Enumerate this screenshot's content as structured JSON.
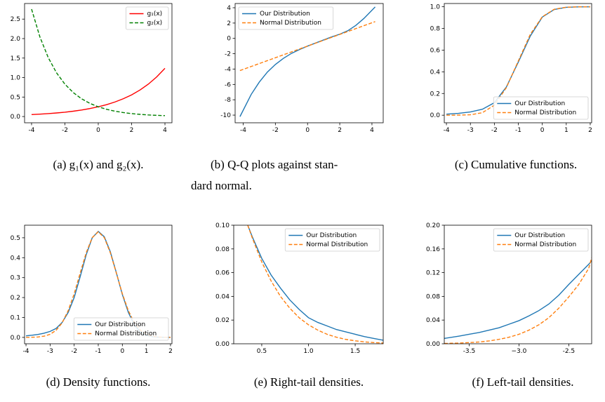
{
  "chart_data": [
    {
      "type": "line",
      "caption": "(a) g₁(x) and g₂(x).",
      "legend": "upper right",
      "x": [
        -4,
        -3.5,
        -3,
        -2.5,
        -2,
        -1.5,
        -1,
        -0.5,
        0,
        0.5,
        1,
        1.5,
        2,
        2.5,
        3,
        3.5,
        4
      ],
      "series": [
        {
          "name": "g₁(x)",
          "color": "#ff0000",
          "style": "solid",
          "values": [
            0.05,
            0.062,
            0.075,
            0.092,
            0.112,
            0.137,
            0.168,
            0.205,
            0.25,
            0.305,
            0.373,
            0.456,
            0.556,
            0.68,
            0.83,
            1.014,
            1.238
          ]
        },
        {
          "name": "g₂(x)",
          "color": "#008000",
          "style": "dashed",
          "values": [
            2.756,
            2.042,
            1.512,
            1.12,
            0.83,
            0.615,
            0.456,
            0.337,
            0.25,
            0.185,
            0.137,
            0.102,
            0.075,
            0.056,
            0.041,
            0.031,
            0.023
          ]
        }
      ],
      "xlim": [
        -4.42,
        4.42
      ],
      "ylim": [
        -0.16,
        2.9
      ],
      "xticks": [
        -4,
        -2,
        0,
        2,
        4
      ],
      "yticks": [
        {
          "value": 0,
          "label": "0.0"
        },
        0.5,
        {
          "value": 1,
          "label": "1.0"
        },
        1.5,
        {
          "value": 2,
          "label": "2.0"
        },
        2.5
      ]
    },
    {
      "type": "line",
      "caption": [
        "(b) Q-Q plots against stan-",
        "dard normal."
      ],
      "legend": "upper left",
      "x": [
        -4.2,
        -3.5,
        -3,
        -2.5,
        -2,
        -1.5,
        -1,
        -0.5,
        0,
        0.5,
        1,
        1.5,
        2,
        2.5,
        3,
        3.5,
        4.2
      ],
      "series": [
        {
          "name": "Our Distribution",
          "color": "#1f77b4",
          "style": "solid",
          "values": [
            -10.2,
            -7.3,
            -5.7,
            -4.4,
            -3.4,
            -2.6,
            -1.95,
            -1.45,
            -1.0,
            -0.6,
            -0.2,
            0.2,
            0.55,
            1.0,
            1.7,
            2.6,
            4.1
          ]
        },
        {
          "name": "Normal Distribution",
          "color": "#ff7f0e",
          "style": "dashed",
          "values": [
            -4.19,
            -3.66,
            -3.28,
            -2.9,
            -2.52,
            -2.14,
            -1.76,
            -1.38,
            -1.0,
            -0.62,
            -0.24,
            0.14,
            0.52,
            0.9,
            1.28,
            1.66,
            2.19
          ]
        }
      ],
      "xlim": [
        -4.5,
        4.7
      ],
      "ylim": [
        -11,
        4.55
      ],
      "xticks": [
        -4,
        -2,
        0,
        2,
        4
      ],
      "yticks": [
        -10,
        -8,
        -6,
        -4,
        -2,
        0,
        2,
        4
      ]
    },
    {
      "type": "line",
      "caption": "(c) Cumulative functions.",
      "legend": "lower right",
      "x": [
        -4,
        -3.5,
        -3,
        -2.5,
        -2,
        -1.5,
        -1,
        -0.5,
        0,
        0.5,
        1,
        1.5,
        2
      ],
      "series": [
        {
          "name": "Our Distribution",
          "color": "#1f77b4",
          "style": "solid",
          "values": [
            0.01,
            0.017,
            0.03,
            0.055,
            0.115,
            0.26,
            0.49,
            0.73,
            0.905,
            0.975,
            0.995,
            0.999,
            1.0
          ]
        },
        {
          "name": "Normal Distribution",
          "color": "#ff7f0e",
          "style": "dashed",
          "values": [
            3e-05,
            0.0005,
            0.0039,
            0.023,
            0.092,
            0.254,
            0.5,
            0.746,
            0.908,
            0.977,
            0.996,
            0.9995,
            1.0
          ]
        }
      ],
      "xlim": [
        -4.09,
        2.06
      ],
      "ylim": [
        -0.07,
        1.03
      ],
      "xticks": [
        -4,
        -3,
        -2,
        -1,
        0,
        1,
        2
      ],
      "yticks": [
        {
          "value": 0,
          "label": "0.0"
        },
        0.2,
        0.4,
        0.6,
        0.8,
        {
          "value": 1,
          "label": "1.0"
        }
      ]
    },
    {
      "type": "line",
      "caption": "(d) Density functions.",
      "legend": "lower right",
      "x": [
        -4,
        -3.75,
        -3.5,
        -3.25,
        -3,
        -2.75,
        -2.5,
        -2.25,
        -2,
        -1.75,
        -1.5,
        -1.25,
        -1,
        -0.75,
        -0.5,
        -0.25,
        0,
        0.25,
        0.5,
        0.75,
        1,
        1.25,
        1.5,
        1.75,
        2
      ],
      "series": [
        {
          "name": "Our Distribution",
          "color": "#1f77b4",
          "style": "solid",
          "values": [
            0.008,
            0.011,
            0.015,
            0.021,
            0.03,
            0.045,
            0.075,
            0.125,
            0.2,
            0.305,
            0.415,
            0.5,
            0.532,
            0.505,
            0.43,
            0.325,
            0.215,
            0.125,
            0.062,
            0.027,
            0.01,
            0.0035,
            0.001,
            0.0003,
            0.0001
          ]
        },
        {
          "name": "Normal Distribution",
          "color": "#ff7f0e",
          "style": "dashed",
          "values": [
            0.0002,
            0.0007,
            0.0021,
            0.0061,
            0.0155,
            0.0356,
            0.073,
            0.134,
            0.219,
            0.323,
            0.425,
            0.501,
            0.53,
            0.501,
            0.425,
            0.323,
            0.219,
            0.134,
            0.073,
            0.0356,
            0.0155,
            0.0061,
            0.0021,
            0.0007,
            0.0002
          ]
        }
      ],
      "xlim": [
        -4.06,
        2.06
      ],
      "ylim": [
        -0.032,
        0.563
      ],
      "xticks": [
        -4,
        -3,
        -2,
        -1,
        0,
        1,
        2
      ],
      "yticks": [
        {
          "value": 0,
          "label": "0.0"
        },
        0.1,
        0.2,
        0.3,
        0.4,
        0.5
      ]
    },
    {
      "type": "line",
      "caption": "(e) Right-tail densities.",
      "legend": "upper right",
      "x": [
        0.35,
        0.4,
        0.5,
        0.6,
        0.7,
        0.8,
        0.9,
        1.0,
        1.1,
        1.2,
        1.3,
        1.4,
        1.5,
        1.6,
        1.7,
        1.8
      ],
      "series": [
        {
          "name": "Our Distribution",
          "color": "#1f77b4",
          "style": "solid",
          "values": [
            0.1,
            0.09,
            0.072,
            0.058,
            0.047,
            0.037,
            0.029,
            0.022,
            0.018,
            0.015,
            0.012,
            0.01,
            0.008,
            0.006,
            0.0045,
            0.003
          ]
        },
        {
          "name": "Normal Distribution",
          "color": "#ff7f0e",
          "style": "dashed",
          "values": [
            0.1,
            0.089,
            0.069,
            0.053,
            0.04,
            0.03,
            0.022,
            0.016,
            0.0115,
            0.008,
            0.0055,
            0.0037,
            0.0025,
            0.0016,
            0.001,
            0.0006
          ]
        }
      ],
      "xlim": [
        0.2,
        1.8
      ],
      "ylim": [
        0,
        0.1
      ],
      "xticks": [
        0.5,
        {
          "value": 1,
          "label": "1.0"
        },
        1.5
      ],
      "yticks": [
        {
          "value": 0,
          "label": "0.00"
        },
        {
          "value": 0.02,
          "label": "0.02"
        },
        {
          "value": 0.04,
          "label": "0.04"
        },
        {
          "value": 0.06,
          "label": "0.06"
        },
        {
          "value": 0.08,
          "label": "0.08"
        },
        {
          "value": 0.1,
          "label": "0.10"
        }
      ]
    },
    {
      "type": "line",
      "caption": "(f) Left-tail densities.",
      "legend": "upper right",
      "x": [
        -3.75,
        -3.6,
        -3.5,
        -3.4,
        -3.3,
        -3.2,
        -3.1,
        -3.0,
        -2.9,
        -2.8,
        -2.7,
        -2.6,
        -2.5,
        -2.4,
        -2.3,
        -2.27
      ],
      "series": [
        {
          "name": "Our Distribution",
          "color": "#1f77b4",
          "style": "solid",
          "values": [
            0.009,
            0.013,
            0.016,
            0.019,
            0.023,
            0.027,
            0.033,
            0.039,
            0.047,
            0.056,
            0.067,
            0.082,
            0.1,
            0.117,
            0.134,
            0.14
          ]
        },
        {
          "name": "Normal Distribution",
          "color": "#ff7f0e",
          "style": "dashed",
          "values": [
            0.0005,
            0.0012,
            0.002,
            0.003,
            0.0048,
            0.0075,
            0.011,
            0.016,
            0.023,
            0.032,
            0.044,
            0.06,
            0.079,
            0.1,
            0.127,
            0.145
          ]
        }
      ],
      "xlim": [
        -3.75,
        -2.27
      ],
      "ylim": [
        0,
        0.2
      ],
      "xticks": [
        -3.5,
        {
          "value": -3,
          "label": "−3.0"
        },
        -2.5
      ],
      "yticks": [
        {
          "value": 0,
          "label": "0.00"
        },
        {
          "value": 0.04,
          "label": "0.04"
        },
        {
          "value": 0.08,
          "label": "0.08"
        },
        {
          "value": 0.12,
          "label": "0.12"
        },
        {
          "value": 0.16,
          "label": "0.16"
        },
        {
          "value": 0.2,
          "label": "0.20"
        }
      ]
    }
  ]
}
